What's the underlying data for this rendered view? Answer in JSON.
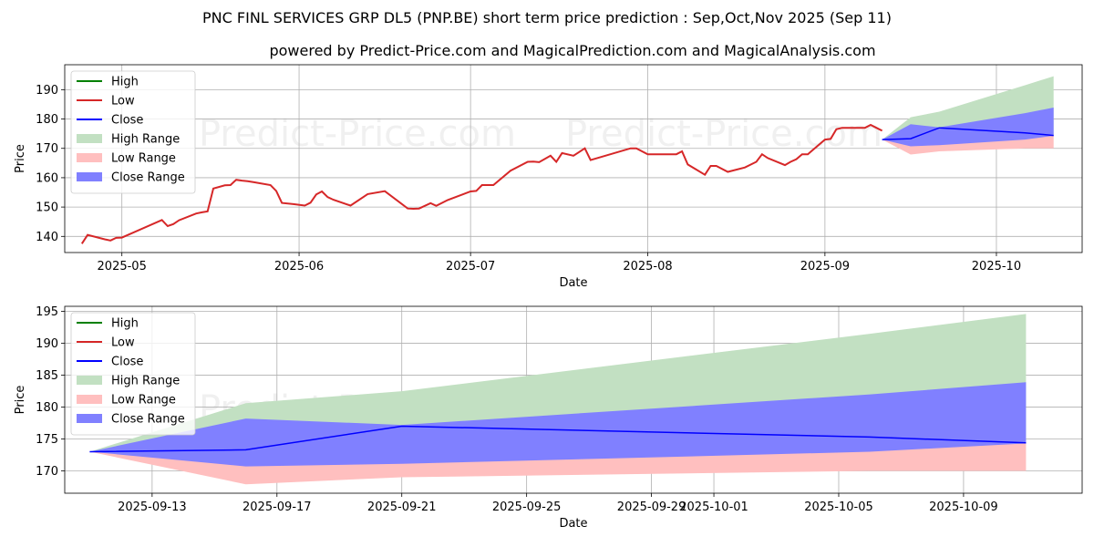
{
  "title": "PNC FINL SERVICES GRP DL5 (PNP.BE) short term price prediction : Sep,Oct,Nov 2025 (Sep 11)",
  "subtitle": "powered by Predict-Price.com and MagicalPrediction.com and MagicalAnalysis.com",
  "watermark": "Predict-Price.com",
  "colors": {
    "high": "#008000",
    "low": "#d62728",
    "close": "#0000ff",
    "high_range": "#c2e0c2",
    "low_range": "#ffbfbf",
    "close_range": "#8080ff"
  },
  "legend": {
    "placement": "top-left",
    "entries": [
      "High",
      "Low",
      "Close",
      "High Range",
      "Low Range",
      "Close Range"
    ]
  },
  "chart_data": [
    {
      "type": "line",
      "xlabel": "Date",
      "ylabel": "Price",
      "xlim": [
        "2025-04-21",
        "2025-10-16"
      ],
      "ylim": [
        134.5,
        198.5
      ],
      "grid": true,
      "x_ticks": [
        "2025-05",
        "2025-06",
        "2025-07",
        "2025-08",
        "2025-09",
        "2025-10"
      ],
      "x_tick_dates": [
        "2025-05-01",
        "2025-06-01",
        "2025-07-01",
        "2025-08-01",
        "2025-09-01",
        "2025-10-01"
      ],
      "y_ticks": [
        140,
        150,
        160,
        170,
        180,
        190
      ],
      "history": {
        "name": "Low",
        "x": [
          "2025-04-24",
          "2025-04-25",
          "2025-04-28",
          "2025-04-29",
          "2025-04-30",
          "2025-05-01",
          "2025-05-08",
          "2025-05-09",
          "2025-05-10",
          "2025-05-11",
          "2025-05-14",
          "2025-05-15",
          "2025-05-16",
          "2025-05-17",
          "2025-05-19",
          "2025-05-20",
          "2025-05-21",
          "2025-05-22",
          "2025-05-23",
          "2025-05-24",
          "2025-05-27",
          "2025-05-28",
          "2025-05-29",
          "2025-05-31",
          "2025-06-02",
          "2025-06-03",
          "2025-06-04",
          "2025-06-05",
          "2025-06-06",
          "2025-06-07",
          "2025-06-10",
          "2025-06-13",
          "2025-06-16",
          "2025-06-20",
          "2025-06-21",
          "2025-06-22",
          "2025-06-24",
          "2025-06-25",
          "2025-06-27",
          "2025-07-01",
          "2025-07-02",
          "2025-07-03",
          "2025-07-04",
          "2025-07-05",
          "2025-07-08",
          "2025-07-11",
          "2025-07-12",
          "2025-07-13",
          "2025-07-15",
          "2025-07-16",
          "2025-07-17",
          "2025-07-19",
          "2025-07-21",
          "2025-07-22",
          "2025-07-29",
          "2025-07-30",
          "2025-08-01",
          "2025-08-04",
          "2025-08-05",
          "2025-08-06",
          "2025-08-07",
          "2025-08-08",
          "2025-08-11",
          "2025-08-12",
          "2025-08-13",
          "2025-08-15",
          "2025-08-18",
          "2025-08-20",
          "2025-08-21",
          "2025-08-22",
          "2025-08-25",
          "2025-08-26",
          "2025-08-27",
          "2025-08-28",
          "2025-08-29",
          "2025-09-01",
          "2025-09-02",
          "2025-09-03",
          "2025-09-04",
          "2025-09-05",
          "2025-09-08",
          "2025-09-09",
          "2025-09-10",
          "2025-09-11"
        ],
        "y": [
          137.5,
          140.5,
          139,
          138.6,
          139.5,
          139.6,
          145.6,
          143.5,
          144.2,
          145.5,
          147.8,
          148.2,
          148.5,
          156.3,
          157.4,
          157.5,
          159.3,
          159,
          158.8,
          158.5,
          157.5,
          155.5,
          151.4,
          151,
          150.5,
          151.5,
          154.3,
          155.3,
          153.4,
          152.5,
          150.5,
          154.4,
          155.4,
          149.5,
          149.4,
          149.5,
          151.3,
          150.4,
          152.4,
          155.3,
          155.5,
          157.5,
          157.5,
          157.5,
          162.4,
          165.4,
          165.5,
          165.3,
          167.5,
          165.4,
          168.4,
          167.5,
          170,
          166,
          170,
          170,
          168,
          168,
          168,
          168,
          169,
          164.5,
          161,
          164,
          164,
          162,
          163.5,
          165.4,
          168,
          166.7,
          164.3,
          165.4,
          166.3,
          168,
          168,
          173,
          173.2,
          176.5,
          177,
          177,
          177,
          178,
          177,
          176
        ]
      },
      "forecast": {
        "x": [
          "2025-09-11",
          "2025-09-16",
          "2025-09-21",
          "2025-10-06",
          "2025-10-11"
        ],
        "close": [
          173,
          173.3,
          177,
          175.3,
          174.4
        ],
        "close_upper": [
          173,
          178.2,
          177.2,
          182,
          183.9
        ],
        "close_lower": [
          173,
          170.7,
          171.1,
          173,
          174.3
        ],
        "high_upper": [
          173,
          180.6,
          182.5,
          191.5,
          194.6
        ],
        "low_lower": [
          173,
          167.9,
          169,
          170,
          170
        ]
      }
    },
    {
      "type": "area",
      "xlabel": "Date",
      "ylabel": "Price",
      "xlim": [
        "2025-09-10.2",
        "2025-10-12.8"
      ],
      "ylim": [
        166.5,
        195.8
      ],
      "grid": true,
      "x_ticks": [
        "2025-09-13",
        "2025-09-17",
        "2025-09-21",
        "2025-09-25",
        "2025-09-29",
        "2025-10-01",
        "2025-10-05",
        "2025-10-09"
      ],
      "y_ticks": [
        170,
        175,
        180,
        185,
        190,
        195
      ]
    }
  ]
}
